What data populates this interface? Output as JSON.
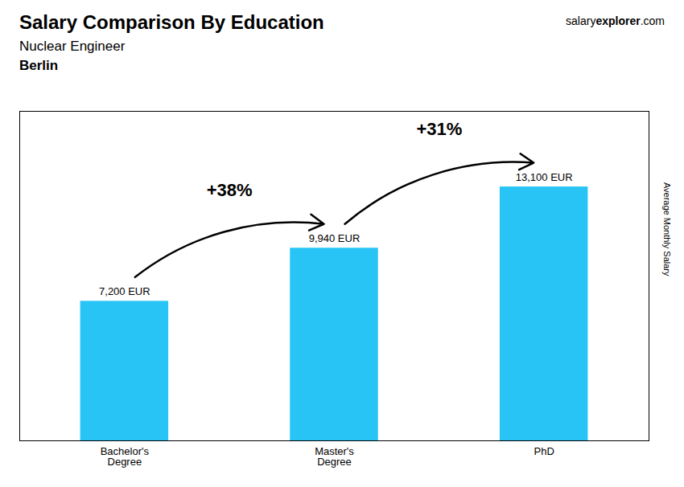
{
  "chart_data": {
    "type": "bar",
    "title": "Salary Comparison By Education",
    "subtitle": "Nuclear Engineer",
    "city": "Berlin",
    "watermark": [
      "salary",
      "explorer",
      ".com"
    ],
    "ylabel": "Average Monthly Salary",
    "categories": [
      "Bachelor's\nDegree",
      "Master's\nDegree",
      "PhD"
    ],
    "values": [
      7200,
      9940,
      13100
    ],
    "value_labels": [
      "7,200 EUR",
      "9,940 EUR",
      "13,100 EUR"
    ],
    "data_labels": true,
    "annotations": [
      "+38%",
      "+31%"
    ],
    "color": "#29c4f6",
    "ylim": [
      0,
      17000
    ],
    "yticks": [],
    "grid": false,
    "tick_labels": "x"
  }
}
